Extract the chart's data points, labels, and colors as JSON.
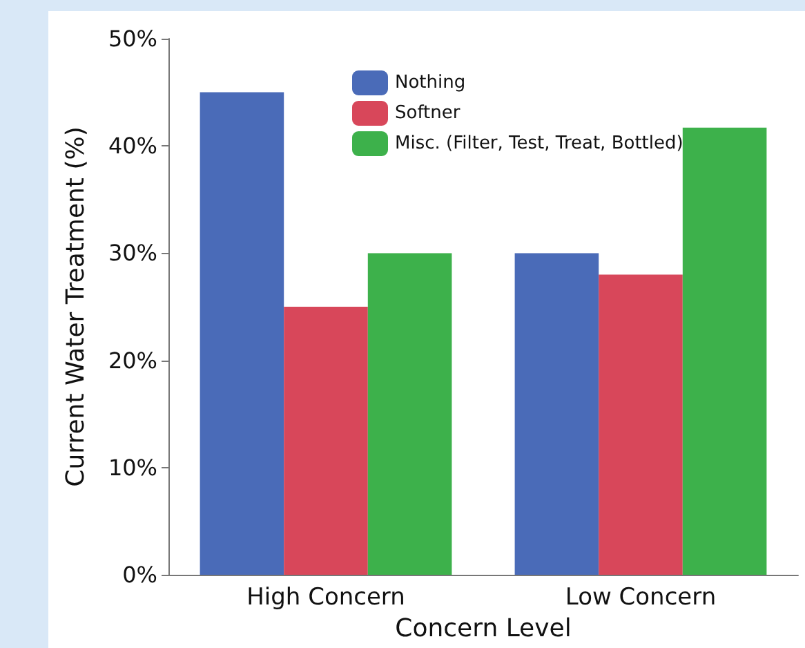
{
  "chart_data": {
    "type": "bar",
    "xlabel": "Concern Level",
    "ylabel": "Current Water Treatment (%)",
    "categories": [
      "High Concern",
      "Low Concern"
    ],
    "series": [
      {
        "name": "Nothing",
        "color": "#4a6bb8",
        "values": [
          45,
          30
        ]
      },
      {
        "name": "Softner",
        "color": "#d8475a",
        "values": [
          25,
          28
        ]
      },
      {
        "name": "Misc. (Filter, Test, Treat, Bottled)",
        "color": "#3db14b",
        "values": [
          30,
          41.7
        ]
      }
    ],
    "ylim": [
      0,
      50
    ],
    "yticks": [
      {
        "value": 0,
        "label": "0%"
      },
      {
        "value": 10,
        "label": "10%"
      },
      {
        "value": 20,
        "label": "20%"
      },
      {
        "value": 30,
        "label": "30%"
      },
      {
        "value": 40,
        "label": "40%"
      },
      {
        "value": 50,
        "label": "50%"
      }
    ],
    "grid": false,
    "legend": "top"
  }
}
